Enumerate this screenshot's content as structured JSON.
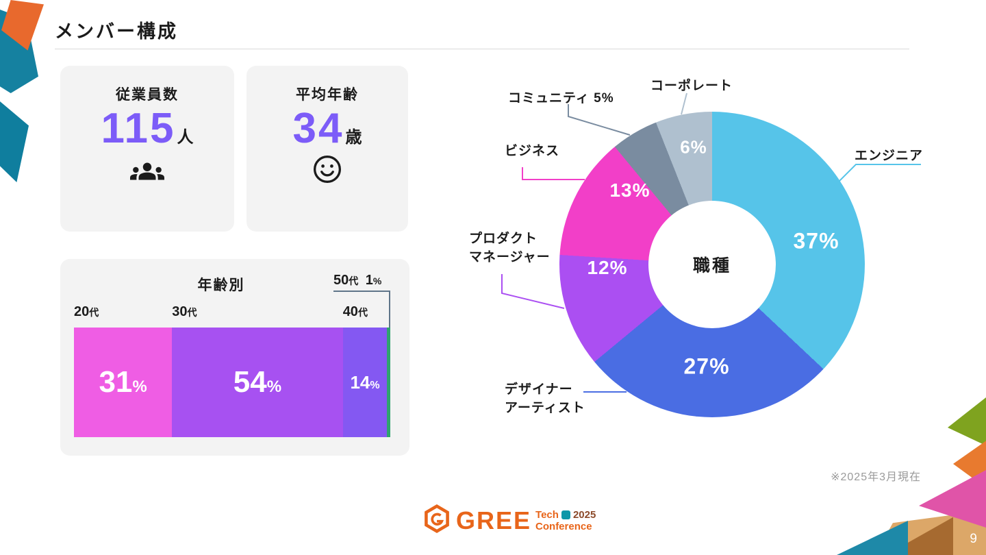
{
  "slide": {
    "title": "メンバー構成",
    "footnote": "※2025年3月現在",
    "page_number": "9"
  },
  "stat_cards": [
    {
      "label": "従業員数",
      "value": "115",
      "unit": "人",
      "icon": "people-icon"
    },
    {
      "label": "平均年齢",
      "value": "34",
      "unit": "歳",
      "icon": "smiley-icon"
    }
  ],
  "age_chart": {
    "title": "年齢別",
    "bars": [
      {
        "cat": "20",
        "cat_suffix": "代",
        "pct": "31",
        "pct_suffix": "%"
      },
      {
        "cat": "30",
        "cat_suffix": "代",
        "pct": "54",
        "pct_suffix": "%"
      },
      {
        "cat": "40",
        "cat_suffix": "代",
        "pct": "14",
        "pct_suffix": "%"
      },
      {
        "cat": "50",
        "cat_suffix": "代",
        "pct": "1",
        "pct_suffix": "%"
      }
    ]
  },
  "donut": {
    "center": "職種",
    "pcts": [
      "37%",
      "27%",
      "12%",
      "13%",
      "6%"
    ],
    "callouts": {
      "engineer": "エンジニア",
      "designer": [
        "デザイナー",
        "アーティスト"
      ],
      "product": [
        "プロダクト",
        "マネージャー"
      ],
      "business": "ビジネス",
      "community": "コミュニティ 5%",
      "corporate": "コーポレート"
    }
  },
  "logo": {
    "brand": "GREE",
    "tech": "Tech",
    "year": "2025",
    "conference": "Conference"
  },
  "colors": {
    "accent_purple": "#7C5CF8",
    "card_bg": "#F3F3F3",
    "logo_orange": "#E8651A"
  },
  "chart_data": [
    {
      "type": "bar",
      "title": "年齢別",
      "orientation": "horizontal-stacked",
      "categories": [
        "20代",
        "30代",
        "40代",
        "50代"
      ],
      "values": [
        31,
        54,
        14,
        1
      ],
      "unit": "%",
      "colors": [
        "#EF5DE4",
        "#A751F1",
        "#8458F2",
        "#2FA36F"
      ]
    },
    {
      "type": "pie",
      "donut": true,
      "title": "職種",
      "categories": [
        "エンジニア",
        "デザイナー・アーティスト",
        "プロダクトマネージャー",
        "ビジネス",
        "コミュニティ",
        "コーポレート"
      ],
      "values": [
        37,
        27,
        12,
        13,
        5,
        6
      ],
      "unit": "%",
      "start_angle_deg": 0,
      "direction": "clockwise",
      "colors": [
        "#56C4E9",
        "#4A6DE3",
        "#AB4FF2",
        "#F23FC8",
        "#7A8CA0",
        "#AFC0CF"
      ]
    }
  ]
}
